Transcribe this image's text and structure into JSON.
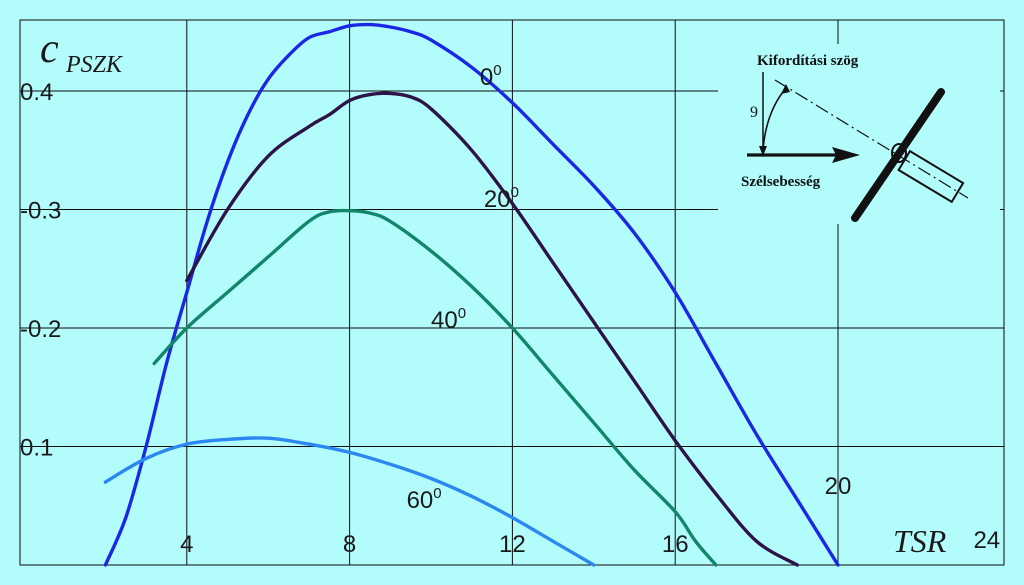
{
  "chart_data": {
    "type": "line",
    "title": "",
    "xlabel": "TSR",
    "ylabel_main": "c",
    "ylabel_sub": "PSZK",
    "xlim": [
      1,
      24
    ],
    "ylim": [
      0,
      0.47
    ],
    "x_ticks": [
      "4",
      "8",
      "12",
      "16",
      "20",
      "24"
    ],
    "y_ticks": [
      "0.1",
      "-0.2",
      "-0.3",
      "0.4"
    ],
    "grid": true,
    "series": [
      {
        "name": "0",
        "color": "#1a28e6",
        "x": [
          2.0,
          2.5,
          3.0,
          3.5,
          4.0,
          4.5,
          5.0,
          5.5,
          6.0,
          6.5,
          7.0,
          7.5,
          8.0,
          8.5,
          9.0,
          9.5,
          10.0,
          11.0,
          12.0,
          13.0,
          14.0,
          15.0,
          16.0,
          17.0,
          18.0,
          19.0,
          20.0
        ],
        "y": [
          0.0,
          0.04,
          0.1,
          0.17,
          0.23,
          0.29,
          0.34,
          0.38,
          0.41,
          0.43,
          0.445,
          0.45,
          0.455,
          0.456,
          0.454,
          0.45,
          0.443,
          0.42,
          0.39,
          0.355,
          0.32,
          0.28,
          0.23,
          0.17,
          0.11,
          0.055,
          0.0
        ]
      },
      {
        "name": "20",
        "color": "#2e1446",
        "x": [
          4.0,
          5.0,
          6.0,
          7.0,
          7.5,
          8.0,
          8.5,
          9.0,
          9.5,
          10.0,
          11.0,
          12.0,
          13.0,
          14.0,
          15.0,
          16.0,
          17.0,
          18.0,
          19.0
        ],
        "y": [
          0.24,
          0.3,
          0.345,
          0.37,
          0.38,
          0.392,
          0.397,
          0.398,
          0.395,
          0.385,
          0.35,
          0.305,
          0.255,
          0.205,
          0.155,
          0.105,
          0.06,
          0.02,
          0.0
        ]
      },
      {
        "name": "40",
        "color": "#12856a",
        "x": [
          3.2,
          4.0,
          5.0,
          6.0,
          7.0,
          7.5,
          8.0,
          8.5,
          9.0,
          10.0,
          11.0,
          12.0,
          13.0,
          14.0,
          15.0,
          16.0,
          16.5,
          17.0
        ],
        "y": [
          0.17,
          0.2,
          0.23,
          0.26,
          0.29,
          0.298,
          0.299,
          0.297,
          0.29,
          0.265,
          0.235,
          0.2,
          0.16,
          0.12,
          0.08,
          0.045,
          0.02,
          0.0
        ]
      },
      {
        "name": "60",
        "color": "#2b88f0",
        "x": [
          2.0,
          3.0,
          4.0,
          5.0,
          6.0,
          7.0,
          8.0,
          9.0,
          10.0,
          11.0,
          12.0,
          13.0,
          14.0
        ],
        "y": [
          0.07,
          0.09,
          0.102,
          0.106,
          0.107,
          0.102,
          0.095,
          0.085,
          0.073,
          0.058,
          0.04,
          0.02,
          0.0
        ]
      }
    ],
    "series_labels": [
      {
        "text": "0",
        "sup": "0",
        "x": 11.2,
        "y": 0.405
      },
      {
        "text": "20",
        "sup": "0",
        "x": 11.3,
        "y": 0.302
      },
      {
        "text": "40",
        "sup": "0",
        "x": 10.0,
        "y": 0.2
      },
      {
        "text": "60",
        "sup": "0",
        "x": 9.4,
        "y": 0.048
      }
    ],
    "inset": {
      "angle_label": "Kifordítási szög",
      "wind_label": "Szélsebesség",
      "angle_symbol": "9"
    }
  }
}
